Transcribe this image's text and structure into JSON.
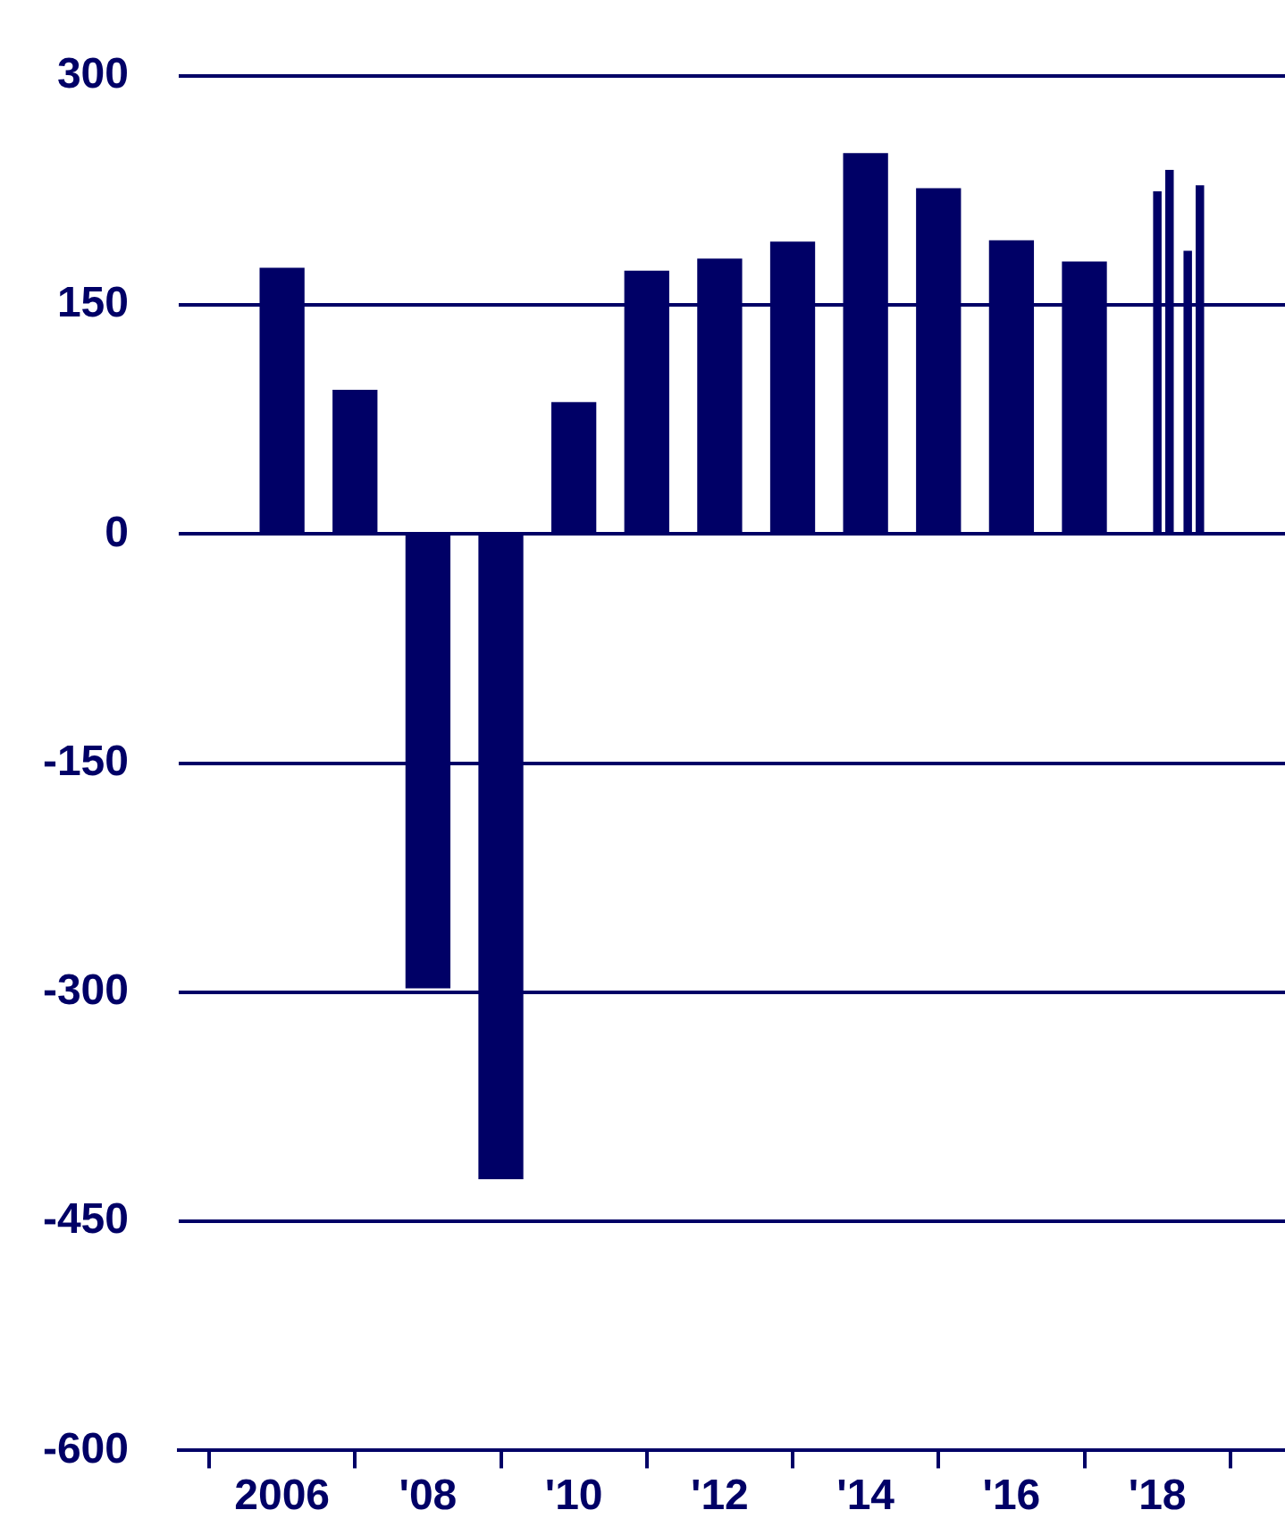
{
  "chart_data": {
    "type": "bar",
    "x": [
      "2006",
      "2007",
      "2008",
      "2009",
      "2010",
      "2011",
      "2012",
      "2013",
      "2014",
      "2015",
      "2016",
      "2017",
      "2018-01",
      "2018-03",
      "2018-06",
      "2018-08"
    ],
    "values": [
      174,
      94,
      -297,
      -422,
      86,
      172,
      180,
      191,
      249,
      226,
      192,
      178,
      224,
      238,
      185,
      228
    ],
    "color": "#000066",
    "xlim": [
      "2005-09",
      "2018-09"
    ],
    "xticks": [
      {
        "value": "2006",
        "label": "2006"
      },
      {
        "value": "2008",
        "label": "'08"
      },
      {
        "value": "2010",
        "label": "'10"
      },
      {
        "value": "2012",
        "label": "'12"
      },
      {
        "value": "2014",
        "label": "'14"
      },
      {
        "value": "2016",
        "label": "'16"
      },
      {
        "value": "2018",
        "label": "'18"
      }
    ],
    "ylim": [
      -600,
      300
    ],
    "yticks": [
      -600,
      -450,
      -300,
      -150,
      0,
      150,
      300
    ],
    "grid": "y",
    "legend": false
  }
}
